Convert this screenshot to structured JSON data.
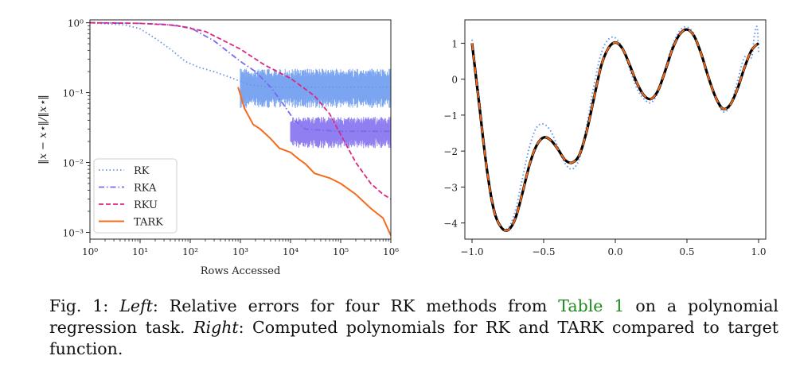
{
  "caption": {
    "label": "Fig. 1:",
    "left_word": "Left",
    "text1": ": Relative errors for four RK methods from ",
    "link": "Table 1",
    "text2": " on a polynomial regression task. ",
    "right_word": "Right",
    "text3": ": Computed polynomials for RK and TARK compared to target function."
  },
  "chart_data": [
    {
      "type": "line",
      "xlabel": "Rows Accessed",
      "ylabel": "‖x − x⋆‖/‖x⋆‖",
      "xscale": "log",
      "yscale": "log",
      "xlim": [
        1,
        1000000
      ],
      "ylim": [
        0.0008,
        1.1
      ],
      "xtick_exponents": [
        0,
        1,
        2,
        3,
        4,
        5,
        6
      ],
      "ytick_exponents": [
        0,
        -1,
        -2,
        -3
      ],
      "legend_position": "lower-left",
      "series": [
        {
          "name": "RK",
          "style": "dotted",
          "color": "#6495ED",
          "points": [
            [
              1,
              1.0
            ],
            [
              5,
              0.93
            ],
            [
              10,
              0.82
            ],
            [
              20,
              0.6
            ],
            [
              40,
              0.42
            ],
            [
              80,
              0.28
            ],
            [
              150,
              0.23
            ],
            [
              300,
              0.2
            ],
            [
              700,
              0.16
            ],
            [
              1500,
              0.13
            ],
            [
              4000,
              0.12
            ],
            [
              10000,
              0.12
            ],
            [
              100000,
              0.12
            ],
            [
              1000000,
              0.12
            ]
          ],
          "band_low": 0.06,
          "band_high": 0.22,
          "band_from": 1000
        },
        {
          "name": "RKA",
          "style": "dashdot",
          "color": "#7B68EE",
          "points": [
            [
              1,
              1.0
            ],
            [
              10,
              0.98
            ],
            [
              30,
              0.95
            ],
            [
              100,
              0.85
            ],
            [
              300,
              0.55
            ],
            [
              1000,
              0.28
            ],
            [
              2000,
              0.2
            ],
            [
              4000,
              0.12
            ],
            [
              7000,
              0.07
            ],
            [
              12000,
              0.04
            ],
            [
              20000,
              0.03
            ],
            [
              100000,
              0.028
            ],
            [
              1000000,
              0.028
            ]
          ],
          "band_low": 0.016,
          "band_high": 0.045,
          "band_from": 10000
        },
        {
          "name": "RKU",
          "style": "dashed",
          "color": "#DC267F",
          "points": [
            [
              1,
              1.0
            ],
            [
              10,
              0.98
            ],
            [
              50,
              0.92
            ],
            [
              200,
              0.75
            ],
            [
              1000,
              0.42
            ],
            [
              3000,
              0.25
            ],
            [
              10000,
              0.16
            ],
            [
              30000,
              0.09
            ],
            [
              60000,
              0.05
            ],
            [
              100000,
              0.025
            ],
            [
              200000,
              0.01
            ],
            [
              400000,
              0.005
            ],
            [
              700000,
              0.0035
            ],
            [
              1000000,
              0.003
            ]
          ]
        },
        {
          "name": "TARK",
          "style": "solid",
          "color": "#F56B1C",
          "points": [
            [
              900,
              0.12
            ],
            [
              1200,
              0.06
            ],
            [
              1800,
              0.035
            ],
            [
              2500,
              0.03
            ],
            [
              4000,
              0.022
            ],
            [
              6000,
              0.016
            ],
            [
              10000,
              0.014
            ],
            [
              15000,
              0.011
            ],
            [
              20000,
              0.0095
            ],
            [
              30000,
              0.007
            ],
            [
              60000,
              0.006
            ],
            [
              100000,
              0.005
            ],
            [
              200000,
              0.0035
            ],
            [
              400000,
              0.0022
            ],
            [
              700000,
              0.0016
            ],
            [
              1000000,
              0.0009
            ]
          ]
        }
      ]
    },
    {
      "type": "line",
      "xlim": [
        -1.05,
        1.05
      ],
      "ylim": [
        -4.45,
        1.65
      ],
      "xticks": [
        -1.0,
        -0.5,
        0.0,
        0.5,
        1.0
      ],
      "yticks": [
        1,
        0,
        -1,
        -2,
        -3,
        -4
      ],
      "series": [
        {
          "style": "dotted",
          "color": "#6495ED",
          "points": [
            [
              -1.0,
              1.1
            ],
            [
              -0.95,
              -0.5
            ],
            [
              -0.9,
              -2.3
            ],
            [
              -0.85,
              -3.5
            ],
            [
              -0.8,
              -4.1
            ],
            [
              -0.75,
              -4.15
            ],
            [
              -0.7,
              -3.7
            ],
            [
              -0.65,
              -2.8
            ],
            [
              -0.6,
              -1.9
            ],
            [
              -0.55,
              -1.35
            ],
            [
              -0.5,
              -1.25
            ],
            [
              -0.45,
              -1.45
            ],
            [
              -0.4,
              -1.9
            ],
            [
              -0.35,
              -2.35
            ],
            [
              -0.3,
              -2.5
            ],
            [
              -0.25,
              -2.2
            ],
            [
              -0.2,
              -1.3
            ],
            [
              -0.15,
              -0.2
            ],
            [
              -0.1,
              0.7
            ],
            [
              -0.05,
              1.1
            ],
            [
              0.0,
              1.15
            ],
            [
              0.05,
              0.85
            ],
            [
              0.1,
              0.3
            ],
            [
              0.15,
              -0.25
            ],
            [
              0.2,
              -0.55
            ],
            [
              0.25,
              -0.65
            ],
            [
              0.3,
              -0.35
            ],
            [
              0.35,
              0.3
            ],
            [
              0.4,
              0.95
            ],
            [
              0.45,
              1.35
            ],
            [
              0.5,
              1.45
            ],
            [
              0.55,
              1.25
            ],
            [
              0.6,
              0.75
            ],
            [
              0.65,
              0.1
            ],
            [
              0.7,
              -0.5
            ],
            [
              0.75,
              -0.9
            ],
            [
              0.8,
              -0.75
            ],
            [
              0.85,
              -0.1
            ],
            [
              0.9,
              0.6
            ],
            [
              0.95,
              0.6
            ],
            [
              0.97,
              1.2
            ],
            [
              0.99,
              1.45
            ],
            [
              1.0,
              0.75
            ]
          ]
        },
        {
          "style": "solid",
          "color": "#000000",
          "points": [
            [
              -1.0,
              1.0
            ],
            [
              -0.95,
              -0.7
            ],
            [
              -0.9,
              -2.4
            ],
            [
              -0.85,
              -3.6
            ],
            [
              -0.8,
              -4.1
            ],
            [
              -0.75,
              -4.2
            ],
            [
              -0.7,
              -3.9
            ],
            [
              -0.65,
              -3.2
            ],
            [
              -0.6,
              -2.4
            ],
            [
              -0.55,
              -1.85
            ],
            [
              -0.5,
              -1.62
            ],
            [
              -0.45,
              -1.7
            ],
            [
              -0.4,
              -1.95
            ],
            [
              -0.35,
              -2.25
            ],
            [
              -0.3,
              -2.32
            ],
            [
              -0.25,
              -2.1
            ],
            [
              -0.2,
              -1.45
            ],
            [
              -0.15,
              -0.55
            ],
            [
              -0.1,
              0.35
            ],
            [
              -0.05,
              0.85
            ],
            [
              0.0,
              1.02
            ],
            [
              0.05,
              0.85
            ],
            [
              0.1,
              0.4
            ],
            [
              0.15,
              -0.1
            ],
            [
              0.2,
              -0.45
            ],
            [
              0.25,
              -0.55
            ],
            [
              0.3,
              -0.3
            ],
            [
              0.35,
              0.25
            ],
            [
              0.4,
              0.85
            ],
            [
              0.45,
              1.25
            ],
            [
              0.5,
              1.38
            ],
            [
              0.55,
              1.2
            ],
            [
              0.6,
              0.7
            ],
            [
              0.65,
              0.05
            ],
            [
              0.7,
              -0.5
            ],
            [
              0.75,
              -0.82
            ],
            [
              0.8,
              -0.72
            ],
            [
              0.85,
              -0.3
            ],
            [
              0.9,
              0.3
            ],
            [
              0.95,
              0.8
            ],
            [
              1.0,
              1.0
            ]
          ]
        },
        {
          "style": "dashed",
          "color": "#F56B1C",
          "same_as": 1
        }
      ]
    }
  ]
}
